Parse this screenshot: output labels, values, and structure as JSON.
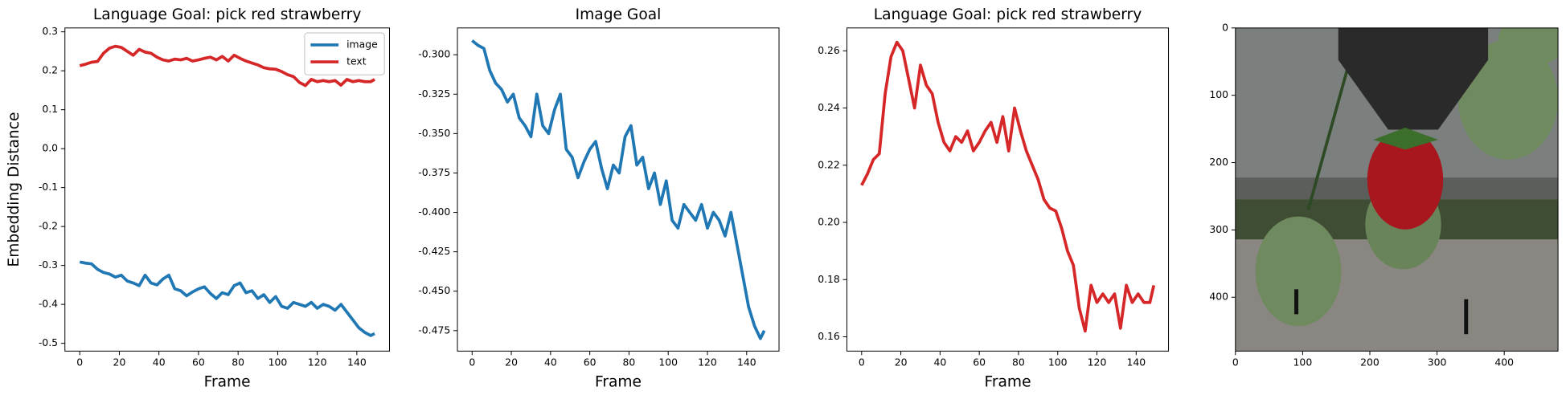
{
  "chart_data": [
    {
      "type": "line",
      "title": "Language Goal: pick red strawberry",
      "xlabel": "Frame",
      "ylabel": "Embedding Distance",
      "x": [
        0,
        3,
        6,
        9,
        12,
        15,
        18,
        21,
        24,
        27,
        30,
        33,
        36,
        39,
        42,
        45,
        48,
        51,
        54,
        57,
        60,
        63,
        66,
        69,
        72,
        75,
        78,
        81,
        84,
        87,
        90,
        93,
        96,
        99,
        102,
        105,
        108,
        111,
        114,
        117,
        120,
        123,
        126,
        129,
        132,
        135,
        138,
        141,
        144,
        147,
        149
      ],
      "series": [
        {
          "name": "image",
          "color": "#1f77b4",
          "values": [
            -0.291,
            -0.294,
            -0.296,
            -0.31,
            -0.318,
            -0.322,
            -0.33,
            -0.325,
            -0.34,
            -0.345,
            -0.352,
            -0.325,
            -0.345,
            -0.35,
            -0.335,
            -0.325,
            -0.36,
            -0.365,
            -0.378,
            -0.368,
            -0.36,
            -0.355,
            -0.372,
            -0.385,
            -0.37,
            -0.375,
            -0.352,
            -0.345,
            -0.37,
            -0.365,
            -0.385,
            -0.375,
            -0.395,
            -0.38,
            -0.405,
            -0.41,
            -0.395,
            -0.4,
            -0.405,
            -0.395,
            -0.41,
            -0.4,
            -0.405,
            -0.415,
            -0.4,
            -0.42,
            -0.44,
            -0.46,
            -0.472,
            -0.48,
            -0.475
          ]
        },
        {
          "name": "text",
          "color": "#d62728",
          "values": [
            0.213,
            0.217,
            0.222,
            0.224,
            0.245,
            0.258,
            0.263,
            0.26,
            0.25,
            0.24,
            0.255,
            0.248,
            0.245,
            0.235,
            0.228,
            0.225,
            0.23,
            0.228,
            0.232,
            0.225,
            0.228,
            0.232,
            0.235,
            0.228,
            0.237,
            0.225,
            0.24,
            0.232,
            0.225,
            0.22,
            0.215,
            0.208,
            0.205,
            0.204,
            0.198,
            0.19,
            0.185,
            0.17,
            0.162,
            0.178,
            0.172,
            0.175,
            0.172,
            0.175,
            0.163,
            0.178,
            0.172,
            0.175,
            0.172,
            0.172,
            0.178
          ]
        }
      ],
      "xlim": [
        -7.5,
        156.5
      ],
      "xticks": [
        0,
        20,
        40,
        60,
        80,
        100,
        120,
        140
      ],
      "ylim": [
        -0.52,
        0.31
      ],
      "yticks": [
        -0.5,
        -0.4,
        -0.3,
        -0.2,
        -0.1,
        {
          "value": 0,
          "label": "0.0"
        },
        0.1,
        0.2,
        0.3
      ],
      "legend": "upper right"
    },
    {
      "type": "line",
      "title": "Image Goal",
      "xlabel": "Frame",
      "x": [
        0,
        3,
        6,
        9,
        12,
        15,
        18,
        21,
        24,
        27,
        30,
        33,
        36,
        39,
        42,
        45,
        48,
        51,
        54,
        57,
        60,
        63,
        66,
        69,
        72,
        75,
        78,
        81,
        84,
        87,
        90,
        93,
        96,
        99,
        102,
        105,
        108,
        111,
        114,
        117,
        120,
        123,
        126,
        129,
        132,
        135,
        138,
        141,
        144,
        147,
        149
      ],
      "series": [
        {
          "color": "#1f77b4",
          "values": [
            -0.291,
            -0.294,
            -0.296,
            -0.31,
            -0.318,
            -0.322,
            -0.33,
            -0.325,
            -0.34,
            -0.345,
            -0.352,
            -0.325,
            -0.345,
            -0.35,
            -0.335,
            -0.325,
            -0.36,
            -0.365,
            -0.378,
            -0.368,
            -0.36,
            -0.355,
            -0.372,
            -0.385,
            -0.37,
            -0.375,
            -0.352,
            -0.345,
            -0.37,
            -0.365,
            -0.385,
            -0.375,
            -0.395,
            -0.38,
            -0.405,
            -0.41,
            -0.395,
            -0.4,
            -0.405,
            -0.395,
            -0.41,
            -0.4,
            -0.405,
            -0.415,
            -0.4,
            -0.42,
            -0.44,
            -0.46,
            -0.472,
            -0.48,
            -0.475
          ]
        }
      ],
      "xlim": [
        -7.5,
        156.5
      ],
      "xticks": [
        0,
        20,
        40,
        60,
        80,
        100,
        120,
        140
      ],
      "ylim": [
        -0.488,
        -0.283
      ],
      "yticks": [
        -0.475,
        {
          "value": -0.45,
          "label": "-0.450"
        },
        -0.425,
        {
          "value": -0.4,
          "label": "-0.400"
        },
        -0.375,
        {
          "value": -0.35,
          "label": "-0.350"
        },
        -0.325,
        {
          "value": -0.3,
          "label": "-0.300"
        }
      ]
    },
    {
      "type": "line",
      "title": "Language Goal: pick red strawberry",
      "xlabel": "Frame",
      "x": [
        0,
        3,
        6,
        9,
        12,
        15,
        18,
        21,
        24,
        27,
        30,
        33,
        36,
        39,
        42,
        45,
        48,
        51,
        54,
        57,
        60,
        63,
        66,
        69,
        72,
        75,
        78,
        81,
        84,
        87,
        90,
        93,
        96,
        99,
        102,
        105,
        108,
        111,
        114,
        117,
        120,
        123,
        126,
        129,
        132,
        135,
        138,
        141,
        144,
        147,
        149
      ],
      "series": [
        {
          "color": "#d62728",
          "values": [
            0.213,
            0.217,
            0.222,
            0.224,
            0.245,
            0.258,
            0.263,
            0.26,
            0.25,
            0.24,
            0.255,
            0.248,
            0.245,
            0.235,
            0.228,
            0.225,
            0.23,
            0.228,
            0.232,
            0.225,
            0.228,
            0.232,
            0.235,
            0.228,
            0.237,
            0.225,
            0.24,
            0.232,
            0.225,
            0.22,
            0.215,
            0.208,
            0.205,
            0.204,
            0.198,
            0.19,
            0.185,
            0.17,
            0.162,
            0.178,
            0.172,
            0.175,
            0.172,
            0.175,
            0.163,
            0.178,
            0.172,
            0.175,
            0.172,
            0.172,
            0.178
          ]
        }
      ],
      "xlim": [
        -7.5,
        156.5
      ],
      "xticks": [
        0,
        20,
        40,
        60,
        80,
        100,
        120,
        140
      ],
      "ylim": [
        0.155,
        0.268
      ],
      "yticks": [
        0.16,
        0.18,
        {
          "value": 0.2,
          "label": "0.20"
        },
        0.22,
        0.24,
        0.26
      ]
    },
    {
      "type": "image",
      "xlim": [
        0,
        480
      ],
      "xticks": [
        0,
        100,
        200,
        300,
        400
      ],
      "ylim": [
        480,
        0
      ],
      "yticks": [
        0,
        100,
        200,
        300,
        400
      ]
    }
  ]
}
